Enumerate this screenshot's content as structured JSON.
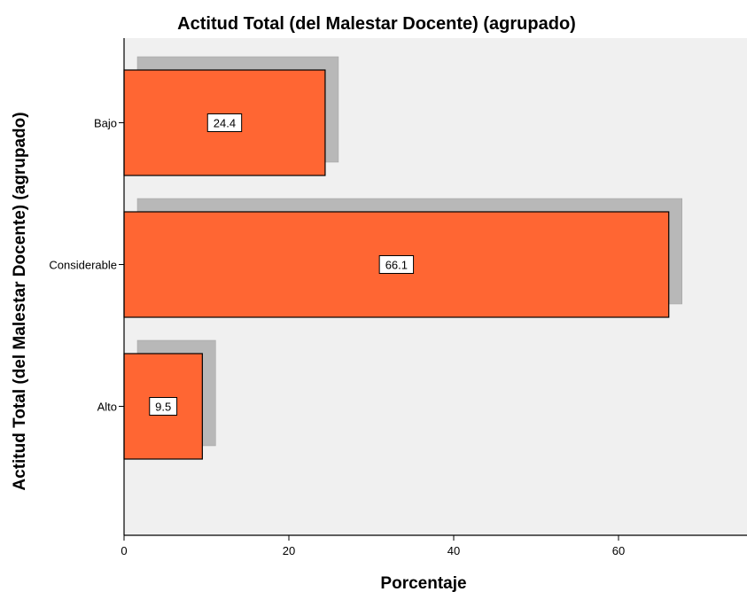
{
  "chart_data": {
    "type": "bar",
    "orientation": "horizontal",
    "title": "Actitud Total (del Malestar Docente) (agrupado)",
    "xlabel": "Porcentaje",
    "ylabel": "Actitud Total (del Malestar Docente) (agrupado)",
    "categories": [
      "Bajo",
      "Considerable",
      "Alto"
    ],
    "values": [
      24.4,
      66.1,
      9.5
    ],
    "data_labels": [
      "24.4",
      "66.1",
      "9.5"
    ],
    "xlim": [
      0,
      75
    ],
    "x_ticks": [
      0,
      20,
      40,
      60
    ],
    "x_tick_labels": [
      "0",
      "20",
      "40",
      "60"
    ],
    "grid": false,
    "bar_shadow": true,
    "colors": {
      "bar_fill": "#FF6633",
      "bar_stroke": "#000000",
      "shadow": "#B8B8B8",
      "plot_background": "#F0F0F0",
      "label_box": "#FFFFFF"
    }
  }
}
